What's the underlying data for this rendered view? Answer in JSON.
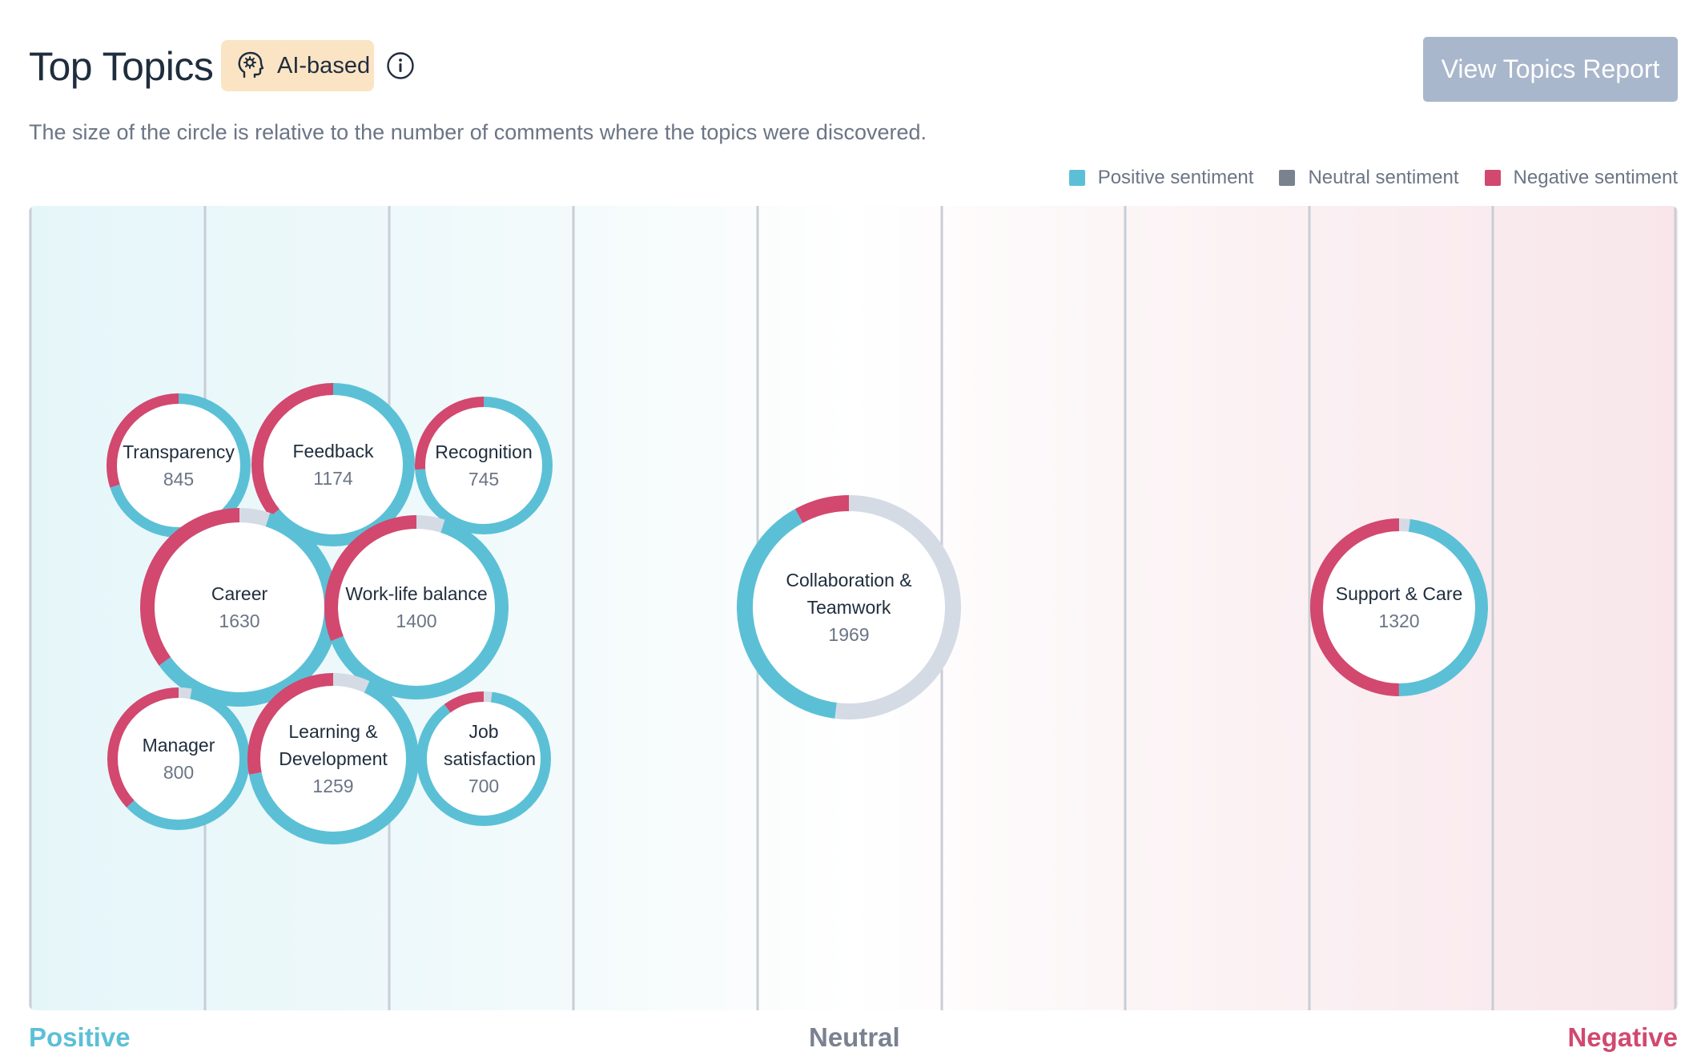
{
  "header": {
    "title": "Top Topics",
    "badge_label": "AI-based",
    "report_button": "View Topics Report"
  },
  "subtitle": "The size of the circle is relative to the number of comments where the topics were discovered.",
  "legend": [
    {
      "label": "Positive sentiment",
      "color": "#5bc0d6"
    },
    {
      "label": "Neutral sentiment",
      "color": "#7a8290"
    },
    {
      "label": "Negative sentiment",
      "color": "#d2486e"
    }
  ],
  "axis": {
    "positive": "Positive",
    "neutral": "Neutral",
    "negative": "Negative"
  },
  "colors": {
    "positive": "#5bc0d6",
    "neutral": "#d5dbe5",
    "negative": "#d2486e"
  },
  "chart_data": {
    "type": "bubble",
    "topics": [
      {
        "name": "Transparency",
        "count": "845",
        "positive": 0.7,
        "neutral": 0.0,
        "negative": 0.3
      },
      {
        "name": "Feedback",
        "count": "1174",
        "positive": 0.64,
        "neutral": 0.0,
        "negative": 0.36
      },
      {
        "name": "Recognition",
        "count": "745",
        "positive": 0.74,
        "neutral": 0.0,
        "negative": 0.26
      },
      {
        "name": "Career",
        "count": "1630",
        "positive": 0.6,
        "neutral": 0.05,
        "negative": 0.35
      },
      {
        "name": "Work-life balance",
        "count": "1400",
        "positive": 0.64,
        "neutral": 0.05,
        "negative": 0.31
      },
      {
        "name": "Manager",
        "count": "800",
        "positive": 0.6,
        "neutral": 0.03,
        "negative": 0.37
      },
      {
        "name": "Learning & Development",
        "count": "1259",
        "positive": 0.65,
        "neutral": 0.07,
        "negative": 0.28
      },
      {
        "name": "Job satisfaction",
        "count": "700",
        "positive": 0.88,
        "neutral": 0.02,
        "negative": 0.1
      },
      {
        "name": "Collaboration & Teamwork",
        "count": "1969",
        "positive": 0.4,
        "neutral": 0.52,
        "negative": 0.08
      },
      {
        "name": "Support & Care",
        "count": "1320",
        "positive": 0.48,
        "neutral": 0.02,
        "negative": 0.5
      }
    ]
  }
}
